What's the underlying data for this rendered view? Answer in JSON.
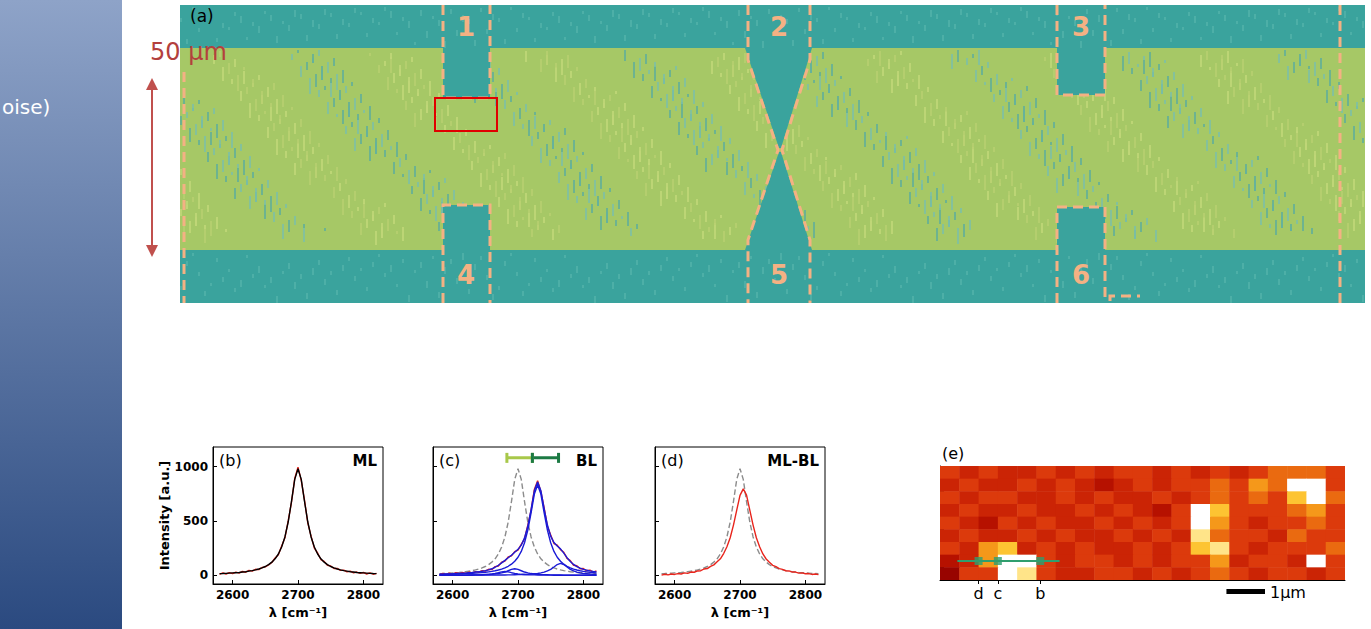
{
  "slide": {
    "scale_label": "50 μm",
    "side_text": "oise)"
  },
  "map": {
    "panel": "(a)",
    "region_labels": [
      "1",
      "2",
      "3",
      "4",
      "5",
      "6"
    ]
  },
  "chart_data": [
    {
      "type": "line",
      "panel": "(b)",
      "title": "ML",
      "x_label": "λ [cm⁻¹]",
      "y_label": "Intensity [a.u.]",
      "x": [
        2580,
        2585,
        2590,
        2595,
        2600,
        2605,
        2610,
        2615,
        2620,
        2625,
        2630,
        2635,
        2640,
        2645,
        2650,
        2655,
        2660,
        2665,
        2670,
        2675,
        2680,
        2685,
        2690,
        2695,
        2700,
        2705,
        2710,
        2715,
        2720,
        2725,
        2730,
        2735,
        2740,
        2745,
        2750,
        2755,
        2760,
        2765,
        2770,
        2775,
        2780,
        2785,
        2790,
        2795,
        2800,
        2805,
        2810,
        2815,
        2820
      ],
      "xlim": [
        2570,
        2830
      ],
      "xticks": [
        2600,
        2700,
        2800
      ],
      "ylim": [
        -80,
        1180
      ],
      "yticks": [
        0,
        500,
        1000
      ],
      "grid": false,
      "tick_labels": true,
      "series": [
        {
          "color": "#e8241c",
          "line_style": "solid",
          "values": [
            8,
            22,
            12,
            25,
            15,
            30,
            20,
            35,
            28,
            45,
            38,
            55,
            52,
            72,
            78,
            95,
            118,
            160,
            190,
            270,
            345,
            500,
            670,
            890,
            995,
            870,
            690,
            480,
            360,
            250,
            205,
            145,
            128,
            92,
            86,
            62,
            64,
            45,
            48,
            32,
            38,
            22,
            30,
            18,
            26,
            12,
            22,
            10,
            18
          ]
        },
        {
          "color": "#000000",
          "line_style": "solid",
          "values": [
            15,
            16,
            18,
            20,
            22,
            24,
            26,
            30,
            33,
            38,
            43,
            50,
            58,
            68,
            81,
            98,
            121,
            152,
            196,
            260,
            353,
            490,
            678,
            882,
            980,
            882,
            678,
            490,
            353,
            260,
            196,
            152,
            121,
            98,
            81,
            68,
            58,
            50,
            43,
            38,
            33,
            30,
            26,
            24,
            22,
            20,
            18,
            16,
            15
          ]
        }
      ]
    },
    {
      "type": "line",
      "panel": "(c)",
      "title": "BL",
      "x_label": "λ [cm⁻¹]",
      "x": [
        2580,
        2585,
        2590,
        2595,
        2600,
        2605,
        2610,
        2615,
        2620,
        2625,
        2630,
        2635,
        2640,
        2645,
        2650,
        2655,
        2660,
        2665,
        2670,
        2675,
        2680,
        2685,
        2690,
        2695,
        2700,
        2705,
        2710,
        2715,
        2720,
        2725,
        2730,
        2735,
        2740,
        2745,
        2750,
        2755,
        2760,
        2765,
        2770,
        2775,
        2780,
        2785,
        2790,
        2795,
        2800,
        2805,
        2810,
        2815,
        2820
      ],
      "xlim": [
        2570,
        2830
      ],
      "xticks": [
        2600,
        2700,
        2800
      ],
      "ylim": [
        -80,
        1180
      ],
      "yticks": [
        0,
        500,
        1000
      ],
      "grid": false,
      "tick_labels": "x",
      "ranges": [
        {
          "from": 2683,
          "to": 2722,
          "y": 1080,
          "color": "#a8c84a"
        },
        {
          "from": 2722,
          "to": 2762,
          "y": 1080,
          "color": "#1c7a44"
        }
      ],
      "series": [
        {
          "color": "#8c8c8c",
          "line_style": "dashed",
          "values": [
            15,
            16,
            18,
            20,
            22,
            24,
            26,
            30,
            33,
            38,
            43,
            50,
            58,
            68,
            81,
            98,
            121,
            152,
            196,
            260,
            353,
            490,
            678,
            882,
            980,
            882,
            678,
            490,
            353,
            260,
            196,
            152,
            121,
            98,
            81,
            68,
            58,
            50,
            43,
            38,
            33,
            30,
            26,
            24,
            22,
            20,
            18,
            16,
            15
          ]
        },
        {
          "color": "#e8241c",
          "line_style": "solid",
          "values": [
            5,
            18,
            8,
            20,
            10,
            24,
            14,
            26,
            18,
            30,
            22,
            34,
            28,
            42,
            38,
            55,
            52,
            80,
            85,
            120,
            130,
            168,
            178,
            218,
            232,
            285,
            335,
            460,
            598,
            790,
            870,
            770,
            620,
            450,
            370,
            292,
            278,
            236,
            212,
            155,
            135,
            92,
            88,
            60,
            62,
            42,
            48,
            28,
            40
          ]
        },
        {
          "color": "#1a1ad6",
          "line_style": "solid",
          "values": [
            1,
            1,
            1,
            1,
            1,
            1,
            2,
            2,
            2,
            2,
            3,
            4,
            4,
            5,
            7,
            9,
            13,
            18,
            24,
            32,
            35,
            32,
            24,
            18,
            13,
            9,
            7,
            5,
            4,
            4,
            3,
            2,
            2,
            2,
            2,
            1,
            1,
            1,
            1,
            1,
            1,
            1,
            1,
            1,
            1,
            1,
            1,
            1,
            1
          ]
        },
        {
          "color": "#1a1ad6",
          "line_style": "solid",
          "values": [
            1,
            1,
            1,
            1,
            1,
            2,
            2,
            2,
            2,
            3,
            3,
            4,
            4,
            5,
            6,
            7,
            9,
            12,
            16,
            22,
            30,
            42,
            54,
            60,
            54,
            42,
            30,
            22,
            16,
            12,
            9,
            7,
            6,
            5,
            4,
            4,
            3,
            3,
            2,
            2,
            2,
            2,
            1,
            1,
            1,
            1,
            1,
            1,
            1
          ]
        },
        {
          "color": "#1a1ad6",
          "line_style": "solid",
          "values": [
            1,
            1,
            1,
            1,
            1,
            1,
            1,
            1,
            1,
            2,
            2,
            2,
            2,
            2,
            2,
            2,
            2,
            2,
            3,
            3,
            3,
            4,
            4,
            5,
            6,
            6,
            8,
            9,
            11,
            14,
            17,
            22,
            29,
            40,
            55,
            76,
            99,
            110,
            99,
            76,
            55,
            40,
            29,
            22,
            17,
            14,
            11,
            9,
            8
          ]
        },
        {
          "color": "#1a1ad6",
          "line_style": "solid",
          "values": [
            8,
            8,
            9,
            10,
            11,
            12,
            13,
            14,
            15,
            17,
            18,
            20,
            22,
            25,
            28,
            32,
            36,
            42,
            49,
            57,
            69,
            83,
            102,
            129,
            166,
            220,
            299,
            415,
            574,
            747,
            830,
            747,
            574,
            415,
            299,
            220,
            166,
            129,
            102,
            83,
            69,
            57,
            49,
            42,
            36,
            32,
            28,
            25,
            22
          ]
        },
        {
          "color": "#1a1ad6",
          "line_style": "solid",
          "values": [
            11,
            11,
            12,
            13,
            14,
            16,
            18,
            19,
            20,
            24,
            26,
            30,
            32,
            37,
            43,
            50,
            60,
            74,
            92,
            114,
            137,
            161,
            184,
            212,
            239,
            277,
            344,
            451,
            605,
            777,
            859,
            778,
            611,
            462,
            360,
            301,
            269,
            243,
            204,
            162,
            127,
            100,
            80,
            66,
            55,
            48,
            41,
            36,
            32
          ]
        }
      ]
    },
    {
      "type": "line",
      "panel": "(d)",
      "title": "ML-BL",
      "x_label": "λ [cm⁻¹]",
      "x": [
        2580,
        2585,
        2590,
        2595,
        2600,
        2605,
        2610,
        2615,
        2620,
        2625,
        2630,
        2635,
        2640,
        2645,
        2650,
        2655,
        2660,
        2665,
        2670,
        2675,
        2680,
        2685,
        2690,
        2695,
        2700,
        2705,
        2710,
        2715,
        2720,
        2725,
        2730,
        2735,
        2740,
        2745,
        2750,
        2755,
        2760,
        2765,
        2770,
        2775,
        2780,
        2785,
        2790,
        2795,
        2800,
        2805,
        2810,
        2815,
        2820
      ],
      "xlim": [
        2570,
        2830
      ],
      "xticks": [
        2600,
        2700,
        2800
      ],
      "ylim": [
        -80,
        1180
      ],
      "yticks": [
        0,
        500,
        1000
      ],
      "grid": false,
      "tick_labels": "x",
      "series": [
        {
          "color": "#8c8c8c",
          "line_style": "dashed",
          "values": [
            15,
            16,
            18,
            20,
            22,
            24,
            26,
            30,
            33,
            38,
            43,
            50,
            58,
            68,
            81,
            98,
            121,
            152,
            196,
            260,
            353,
            490,
            678,
            882,
            980,
            882,
            678,
            490,
            353,
            260,
            196,
            152,
            121,
            98,
            81,
            68,
            58,
            50,
            43,
            38,
            33,
            30,
            26,
            24,
            22,
            20,
            18,
            16,
            15
          ]
        },
        {
          "color": "#e8241c",
          "line_style": "solid",
          "values": [
            2,
            10,
            4,
            12,
            8,
            16,
            12,
            22,
            18,
            30,
            28,
            40,
            42,
            58,
            62,
            82,
            96,
            124,
            152,
            200,
            262,
            345,
            462,
            600,
            735,
            795,
            738,
            600,
            462,
            345,
            262,
            196,
            150,
            120,
            92,
            80,
            62,
            55,
            42,
            40,
            30,
            30,
            20,
            22,
            14,
            16,
            8,
            12,
            6
          ]
        }
      ]
    },
    {
      "type": "heatmap",
      "panel": "(e)",
      "cells": [
        [
          5,
          4,
          5,
          4,
          4,
          5,
          4,
          5,
          4,
          5,
          5,
          4,
          5,
          4,
          5,
          4,
          5,
          6,
          6,
          6,
          5
        ],
        [
          4,
          5,
          4,
          4,
          5,
          4,
          5,
          4,
          3,
          4,
          5,
          4,
          5,
          5,
          6,
          5,
          7,
          6,
          10,
          10,
          5
        ],
        [
          5,
          4,
          5,
          5,
          4,
          4,
          5,
          4,
          5,
          4,
          4,
          5,
          4,
          5,
          6,
          5,
          6,
          5,
          8,
          10,
          6
        ],
        [
          4,
          5,
          4,
          4,
          5,
          4,
          4,
          5,
          4,
          5,
          4,
          3,
          5,
          10,
          8,
          5,
          5,
          5,
          6,
          7,
          5
        ],
        [
          5,
          4,
          3,
          5,
          4,
          5,
          4,
          4,
          5,
          4,
          5,
          4,
          5,
          10,
          7,
          5,
          4,
          5,
          5,
          6,
          5
        ],
        [
          4,
          5,
          4,
          4,
          5,
          4,
          5,
          4,
          4,
          5,
          4,
          5,
          4,
          9,
          6,
          5,
          5,
          4,
          6,
          5,
          5
        ],
        [
          5,
          4,
          7,
          8,
          4,
          5,
          4,
          5,
          4,
          4,
          5,
          4,
          5,
          8,
          9,
          5,
          4,
          5,
          5,
          5,
          6
        ],
        [
          3,
          4,
          7,
          10,
          10,
          5,
          4,
          5,
          5,
          4,
          5,
          4,
          5,
          5,
          7,
          4,
          5,
          5,
          4,
          10,
          5
        ],
        [
          2,
          5,
          5,
          10,
          9,
          5,
          4,
          4,
          5,
          5,
          4,
          5,
          4,
          5,
          6,
          5,
          4,
          5,
          5,
          4,
          5
        ]
      ],
      "color_range": [
        0,
        10
      ],
      "xlim": [
        0,
        21
      ],
      "ylim": [
        0,
        9
      ],
      "xticks": [
        {
          "value": 2,
          "label": "d"
        },
        {
          "value": 3,
          "label": "c"
        },
        {
          "value": 5.2,
          "label": "b"
        }
      ],
      "yticks": [
        1,
        2,
        3,
        4,
        5,
        6,
        7,
        8
      ],
      "grid": false,
      "tick_labels": "x",
      "profile": {
        "x": [
          0.9,
          6.2
        ],
        "y": 1.5,
        "points": [
          2,
          3,
          5.2
        ],
        "color": "#2f9e6e",
        "marker": "square"
      },
      "scale_bar": {
        "label": "1μm",
        "length": 2
      }
    }
  ]
}
